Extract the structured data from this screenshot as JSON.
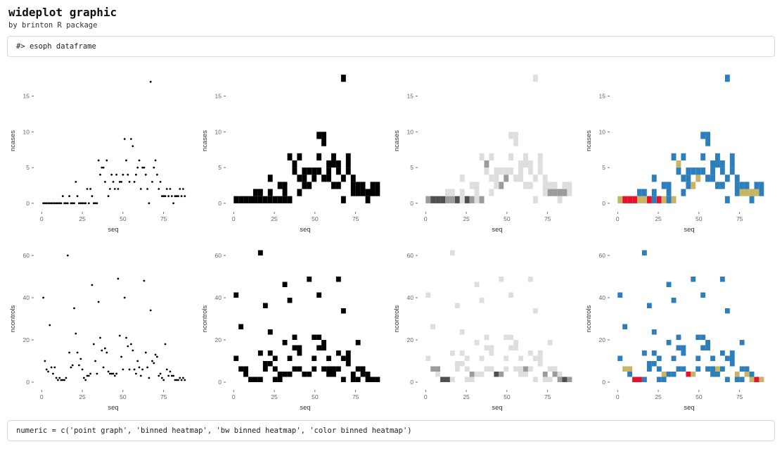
{
  "header": {
    "title": "wideplot graphic",
    "subtitle": "by brinton R package"
  },
  "boxes": {
    "top": "#> esoph dataframe",
    "bottom": "numeric = c('point graph', 'binned heatmap', 'bw binned heatmap', 'color binned heatmap')"
  },
  "palette": {
    "point": "#000000",
    "binned": "#000000",
    "bw": [
      "#dedede",
      "#9b9b9b",
      "#4f4f4f"
    ],
    "color": [
      "#2e7ebc",
      "#c8b465",
      "#e8112d"
    ],
    "tick_text": "#666666",
    "axis_title": "#333333",
    "tick_mark": "#333333"
  },
  "chart_data": [
    {
      "type": "scatter",
      "title": "",
      "xlabel": "seq",
      "ylabel": "ncases",
      "styles": [
        "point",
        "binned",
        "bw",
        "color"
      ],
      "style_labels": [
        "point graph",
        "binned heatmap",
        "bw binned heatmap",
        "color binned heatmap"
      ],
      "x_ticks": [
        0,
        25,
        50,
        75
      ],
      "y_ticks": [
        0,
        5,
        10,
        15
      ],
      "xlim": [
        -4,
        92
      ],
      "ylim": [
        -1,
        18.5
      ],
      "bin_width_x": 3,
      "bin_width_y": 1,
      "x": [
        1,
        2,
        3,
        4,
        5,
        6,
        7,
        8,
        9,
        10,
        11,
        12,
        13,
        14,
        15,
        16,
        17,
        18,
        19,
        20,
        21,
        22,
        23,
        24,
        25,
        26,
        27,
        28,
        29,
        30,
        31,
        32,
        33,
        34,
        35,
        36,
        37,
        38,
        39,
        40,
        41,
        42,
        43,
        44,
        45,
        46,
        47,
        48,
        49,
        50,
        51,
        52,
        53,
        54,
        55,
        56,
        57,
        58,
        59,
        60,
        61,
        62,
        63,
        64,
        65,
        66,
        67,
        68,
        69,
        70,
        71,
        72,
        73,
        74,
        75,
        76,
        77,
        78,
        79,
        80,
        81,
        82,
        83,
        84,
        85,
        86,
        87,
        88
      ],
      "y": [
        0,
        0,
        0,
        0,
        0,
        0,
        0,
        0,
        0,
        0,
        0,
        0,
        1,
        0,
        0,
        0,
        1,
        0,
        0,
        0,
        3,
        1,
        0,
        0,
        0,
        0,
        0,
        2,
        0,
        2,
        1,
        0,
        0,
        0,
        6,
        4,
        5,
        5,
        3,
        6,
        1,
        2,
        4,
        3,
        2,
        4,
        2,
        3,
        3,
        4,
        9,
        6,
        4,
        3,
        9,
        8,
        3,
        4,
        5,
        6,
        2,
        5,
        5,
        4,
        2,
        0,
        17,
        3,
        5,
        6,
        4,
        2,
        3,
        1,
        1,
        1,
        2,
        1,
        2,
        1,
        0,
        1,
        1,
        1,
        2,
        1,
        2,
        1
      ]
    },
    {
      "type": "scatter",
      "title": "",
      "xlabel": "seq",
      "ylabel": "ncontrols",
      "styles": [
        "point",
        "binned",
        "bw",
        "color"
      ],
      "style_labels": [
        "point graph",
        "binned heatmap",
        "bw binned heatmap",
        "color binned heatmap"
      ],
      "x_ticks": [
        0,
        25,
        50,
        75
      ],
      "y_ticks": [
        0,
        20,
        40,
        60
      ],
      "xlim": [
        -4,
        92
      ],
      "ylim": [
        -3,
        63
      ],
      "bin_width_x": 3,
      "bin_width_y": 2.5,
      "x": [
        1,
        2,
        3,
        4,
        5,
        6,
        7,
        8,
        9,
        10,
        11,
        12,
        13,
        14,
        15,
        16,
        17,
        18,
        19,
        20,
        21,
        22,
        23,
        24,
        25,
        26,
        27,
        28,
        29,
        30,
        31,
        32,
        33,
        34,
        35,
        36,
        37,
        38,
        39,
        40,
        41,
        42,
        43,
        44,
        45,
        46,
        47,
        48,
        49,
        50,
        51,
        52,
        53,
        54,
        55,
        56,
        57,
        58,
        59,
        60,
        61,
        62,
        63,
        64,
        65,
        66,
        67,
        68,
        69,
        70,
        71,
        72,
        73,
        74,
        75,
        76,
        77,
        78,
        79,
        80,
        81,
        82,
        83,
        84,
        85,
        86,
        87,
        88
      ],
      "y": [
        40,
        10,
        6,
        5,
        27,
        7,
        4,
        7,
        2,
        1,
        2,
        1,
        1,
        1,
        2,
        60,
        14,
        7,
        8,
        35,
        23,
        14,
        8,
        11,
        6,
        2,
        1,
        3,
        3,
        4,
        46,
        18,
        10,
        4,
        38,
        21,
        15,
        7,
        16,
        14,
        5,
        4,
        4,
        4,
        3,
        4,
        49,
        22,
        12,
        6,
        40,
        21,
        17,
        6,
        18,
        15,
        6,
        4,
        10,
        7,
        3,
        6,
        48,
        14,
        7,
        2,
        34,
        10,
        9,
        13,
        12,
        3,
        4,
        2,
        1,
        18,
        6,
        3,
        5,
        3,
        3,
        1,
        1,
        1,
        2,
        1,
        2,
        1
      ]
    }
  ]
}
